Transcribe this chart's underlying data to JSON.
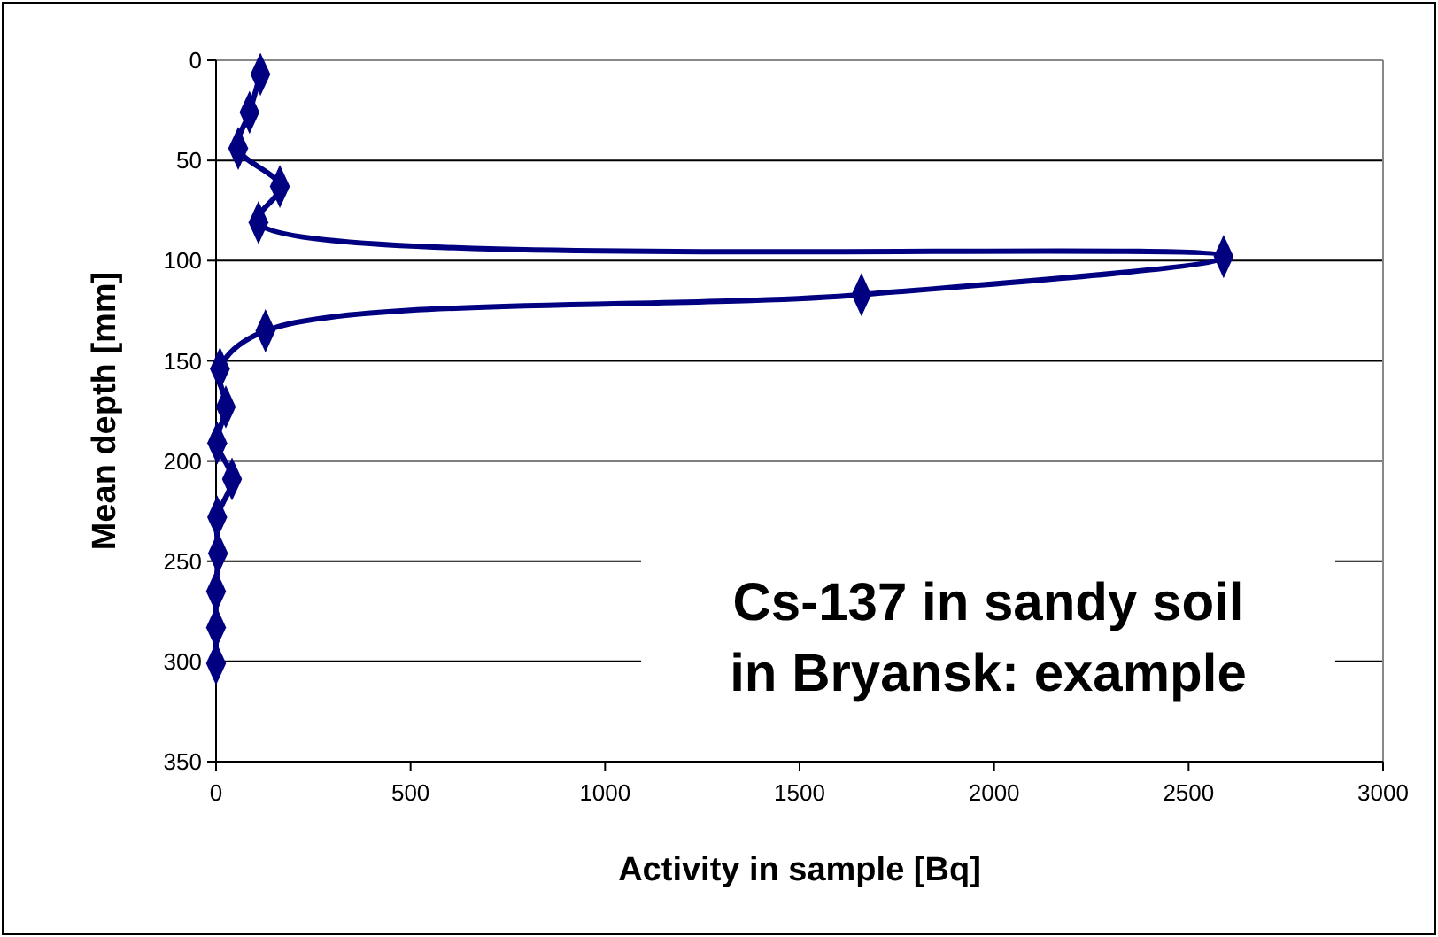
{
  "chart_data": {
    "type": "line",
    "xlabel": "Activity in sample [Bq]",
    "ylabel": "Mean depth [mm]",
    "series": [
      {
        "color": "#000080",
        "x": [
          114,
          86,
          57,
          164,
          109,
          2590,
          1659,
          127,
          10,
          25,
          3,
          41,
          3,
          5,
          0,
          0,
          0
        ],
        "values": [
          7,
          26,
          44,
          63,
          81,
          98,
          117,
          135,
          154,
          173,
          191,
          209,
          228,
          246,
          265,
          283,
          301
        ]
      }
    ],
    "xlim": [
      0,
      3000
    ],
    "xticks": [
      0,
      500,
      1000,
      1500,
      2000,
      2500,
      3000
    ],
    "ylim": [
      350,
      0
    ],
    "yticks": [
      0,
      50,
      100,
      150,
      200,
      250,
      300,
      350
    ],
    "grid": "y",
    "marker": "diamond",
    "line_style": "solid",
    "annotations": [
      "Cs-137 in sandy soil in Bryansk: example"
    ]
  }
}
